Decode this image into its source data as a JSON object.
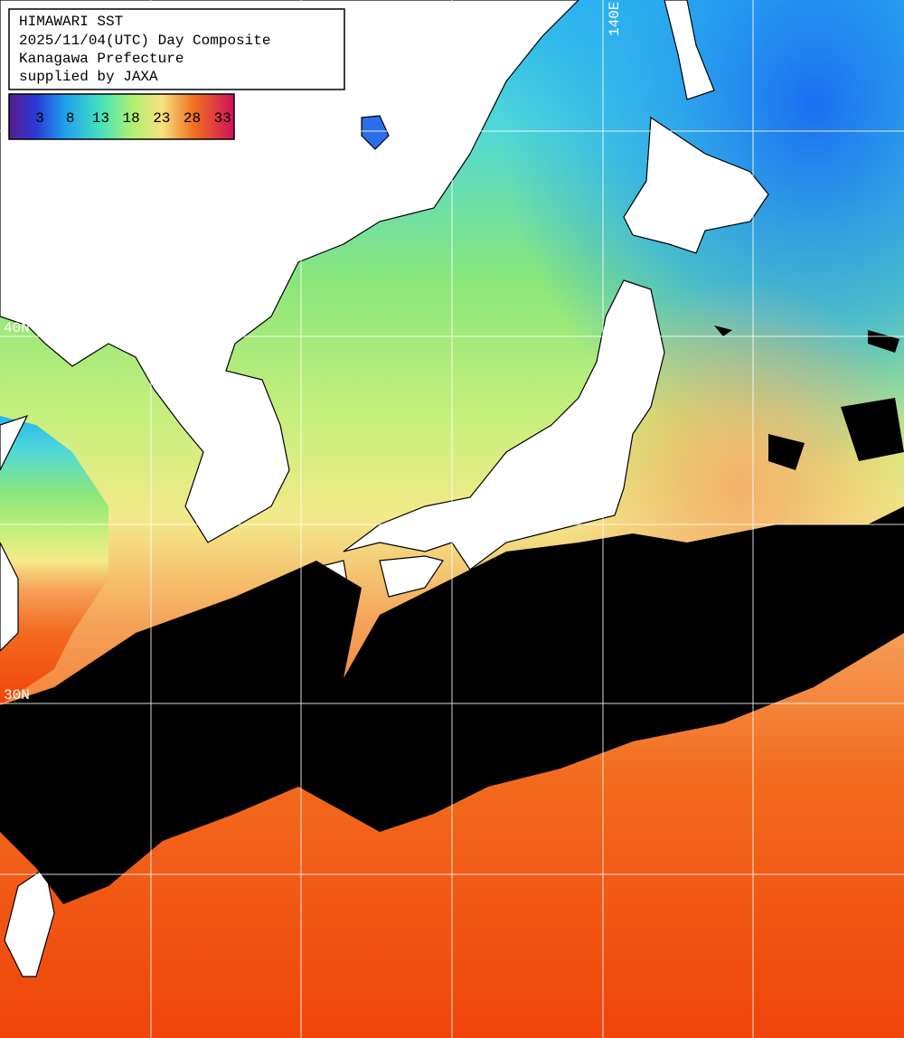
{
  "header": {
    "lines": [
      "HIMAWARI SST",
      "2025/11/04(UTC) Day Composite",
      "Kanagawa Prefecture",
      "supplied by JAXA"
    ]
  },
  "colorbar": {
    "labels": [
      3,
      8,
      13,
      18,
      23,
      28,
      33
    ]
  },
  "grid_labels": {
    "lat_40": "40N",
    "lat_30": "30N",
    "lon_140": "140E"
  }
}
